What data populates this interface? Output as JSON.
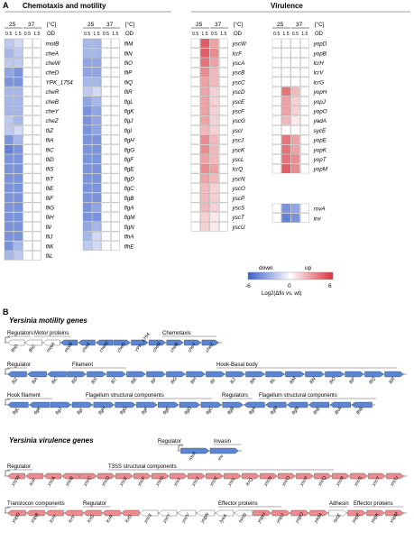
{
  "panel_a": {
    "label": "A",
    "motility_title": "Chemotaxis and motility",
    "virulence_title": "Virulence",
    "temps": [
      "25",
      "37"
    ],
    "temp_unit": "[°C]",
    "od_values": [
      "0.5",
      "1.5",
      "0.5",
      "1.5"
    ],
    "od_label": "OD",
    "col1_genes": [
      "motB",
      "cheA",
      "cheW",
      "cheD",
      "YPK_1754",
      "cheR",
      "cheB",
      "cheY",
      "cheZ",
      "fliZ",
      "fliA",
      "fliC",
      "fliD",
      "fliS",
      "fliT",
      "fliE",
      "fliF",
      "fliG",
      "fliH",
      "fliI",
      "fliJ",
      "fliK",
      "fliL"
    ],
    "col2_genes": [
      "fliM",
      "fliN",
      "fliO",
      "fliP",
      "fliQ",
      "fliR",
      "flgL",
      "flgK",
      "flgJ",
      "flgI",
      "flgH",
      "flgG",
      "flgF",
      "flgE",
      "flgD",
      "flgC",
      "flgB",
      "flgA",
      "flgM",
      "flgN",
      "flhA",
      "flhE"
    ],
    "col3_genes": [
      "yscW",
      "lcrF",
      "yscA",
      "yscB",
      "yscC",
      "yscD",
      "yscE",
      "yscF",
      "yscG",
      "yscI",
      "yscJ",
      "yscK",
      "yscL",
      "lcrQ",
      "yscN",
      "yscO",
      "yscP",
      "yscS",
      "yscT",
      "yscU"
    ],
    "col4_genes": [
      "yopD",
      "yopB",
      "lcrH",
      "lcrV",
      "lcrG",
      "yopH",
      "yopJ",
      "yopO",
      "yadA",
      "sycE",
      "yopE",
      "yopK",
      "yopT",
      "yopM"
    ],
    "col5_genes": [
      "rovA",
      "inv"
    ],
    "legend": {
      "down": "down",
      "up": "up",
      "min": "-6",
      "mid": "0",
      "max": "6",
      "label": "Log2(Δfis vs. wt)"
    },
    "colors": {
      "down": "#3a5fcd",
      "up": "#d9303a",
      "neutral": "#ffffff"
    }
  },
  "chart_data": {
    "type": "heatmap",
    "columns": [
      "25°C OD 0.5",
      "25°C OD 1.5",
      "37°C OD 0.5",
      "37°C OD 1.5"
    ],
    "range": [
      -6,
      6
    ],
    "rows": {
      "motB": [
        -1.5,
        -1,
        0,
        0
      ],
      "cheA": [
        -2,
        -1.5,
        0,
        0
      ],
      "cheW": [
        -1.5,
        -1.5,
        0,
        0
      ],
      "cheD": [
        -2.5,
        -3,
        0,
        0
      ],
      "YPK_1754": [
        -3,
        -3,
        0,
        0
      ],
      "cheR": [
        -2,
        -2,
        0,
        0
      ],
      "cheB": [
        -2,
        -2,
        0,
        0
      ],
      "cheY": [
        -2,
        -2,
        0,
        0
      ],
      "cheZ": [
        -1.5,
        -2,
        0,
        0
      ],
      "fliZ": [
        -1.5,
        -1,
        0,
        0
      ],
      "fliA": [
        -3,
        -2,
        0,
        0
      ],
      "fliC": [
        -3.5,
        -3,
        0,
        0
      ],
      "fliD": [
        -3,
        -3,
        0,
        0
      ],
      "fliS": [
        -3,
        -3,
        0,
        0
      ],
      "fliT": [
        -3,
        -3,
        0,
        0
      ],
      "fliE": [
        -3,
        -3,
        0,
        0
      ],
      "fliF": [
        -3,
        -3,
        0,
        0
      ],
      "fliG": [
        -3,
        -3,
        0,
        0
      ],
      "fliH": [
        -3,
        -3,
        0,
        0
      ],
      "fliI": [
        -3,
        -3,
        0,
        0
      ],
      "fliJ": [
        -3,
        -3,
        0,
        0
      ],
      "fliK": [
        -3,
        -2,
        0,
        0
      ],
      "fliL": [
        -2,
        -1.5,
        0,
        0
      ],
      "fliM": [
        -2,
        -2,
        0,
        0
      ],
      "fliN": [
        -2,
        -2,
        0,
        0
      ],
      "fliO": [
        -2.5,
        -2.5,
        0,
        0
      ],
      "fliP": [
        -2.5,
        -2.5,
        0,
        0
      ],
      "fliQ": [
        -2,
        -2,
        0,
        0
      ],
      "fliR": [
        -1.5,
        -1,
        0,
        0
      ],
      "flgL": [
        -2.5,
        -2,
        0,
        0
      ],
      "flgK": [
        -3,
        -2.5,
        0,
        0
      ],
      "flgJ": [
        -3,
        -2.5,
        0,
        0
      ],
      "flgI": [
        -3,
        -2.5,
        0,
        0
      ],
      "flgH": [
        -3,
        -3,
        0,
        0
      ],
      "flgG": [
        -3,
        -3,
        0,
        0
      ],
      "flgF": [
        -3,
        -3,
        0,
        0
      ],
      "flgE": [
        -3,
        -3,
        0,
        0
      ],
      "flgD": [
        -3,
        -3,
        0,
        0
      ],
      "flgC": [
        -3,
        -3,
        0,
        0
      ],
      "flgB": [
        -3,
        -3,
        0,
        0
      ],
      "flgA": [
        -3,
        -2.5,
        0,
        0
      ],
      "flgM": [
        -3,
        -3,
        0,
        0
      ],
      "flgN": [
        -2.5,
        -2,
        0,
        0
      ],
      "flhA": [
        -2,
        -1,
        0,
        0
      ],
      "flhE": [
        -1.5,
        -1,
        0,
        0
      ],
      "yscW": [
        0,
        3.5,
        2,
        0
      ],
      "lcrF": [
        0,
        3.5,
        2.5,
        0
      ],
      "yscA": [
        0,
        3,
        2,
        0
      ],
      "yscB": [
        0,
        2.5,
        1.5,
        0
      ],
      "yscC": [
        0,
        2,
        1.5,
        0
      ],
      "yscD": [
        0,
        2,
        1,
        0
      ],
      "yscE": [
        0,
        2,
        1,
        0
      ],
      "yscF": [
        0,
        2,
        1,
        0
      ],
      "yscG": [
        0,
        2,
        1,
        0
      ],
      "yscI": [
        0,
        1.5,
        1,
        0
      ],
      "yscJ": [
        0,
        2.5,
        1.5,
        0
      ],
      "yscK": [
        0,
        2.5,
        1.5,
        0
      ],
      "yscL": [
        0,
        2,
        1.5,
        0
      ],
      "lcrQ": [
        0,
        2.5,
        2,
        0
      ],
      "yscN": [
        0,
        2,
        1.5,
        0
      ],
      "yscO": [
        0,
        1.5,
        1,
        0
      ],
      "yscP": [
        0,
        1.5,
        1,
        0
      ],
      "yscS": [
        0,
        1.5,
        1,
        0
      ],
      "yscT": [
        0,
        1,
        0.5,
        0
      ],
      "yscU": [
        0,
        1,
        0.5,
        0
      ],
      "yopD": [
        0,
        0,
        0,
        0
      ],
      "yopB": [
        0,
        0,
        0,
        0
      ],
      "lcrH": [
        0,
        0,
        0,
        0
      ],
      "lcrV": [
        0,
        0,
        0,
        0
      ],
      "lcrG": [
        0,
        0,
        0,
        0
      ],
      "yopH": [
        0,
        3,
        1.5,
        0
      ],
      "yopJ": [
        0,
        2,
        1,
        0
      ],
      "yopO": [
        0,
        2,
        1,
        0
      ],
      "yadA": [
        0,
        1.5,
        0.5,
        0
      ],
      "sycE": [
        0,
        0,
        0,
        0
      ],
      "yopE": [
        0,
        3,
        2,
        0
      ],
      "yopK": [
        0,
        3,
        2,
        0
      ],
      "yopT": [
        0,
        3,
        2.5,
        0
      ],
      "yopM": [
        0,
        3.5,
        2.5,
        0
      ],
      "rovA": [
        0,
        -3,
        -2.5,
        0
      ],
      "inv": [
        0,
        -3.5,
        -3,
        0
      ]
    }
  },
  "panel_b": {
    "label": "B",
    "motility_title": "Yersinia motility genes",
    "virulence_title": "Yersinia virulence genes",
    "operons": [
      {
        "title_left": "Regulators",
        "title_right": "Motor proteins",
        "title_center": "Chemotaxis",
        "genes": [
          "flhD",
          "flhC",
          "motA",
          "motB",
          "cheA",
          "cheW",
          "cheD",
          "YPK_1754",
          "cheR",
          "cheB",
          "cheY",
          "cheZ"
        ]
      },
      {
        "title_left": "Regulator",
        "title_mid": "Filament",
        "title_right": "Hook-Basal body",
        "genes": [
          "fliZ",
          "fliA",
          "fliC",
          "fliD",
          "fliS",
          "fliT",
          "fliE",
          "fliF",
          "fliG",
          "fliH",
          "fliI",
          "fliJ",
          "fliK",
          "fliL",
          "fliM",
          "fliN",
          "fliO",
          "fliP",
          "fliQ",
          "fliR"
        ]
      },
      {
        "title_left": "Hook filament",
        "title_mid": "Flagellum structural components",
        "title_reg": "Regulators",
        "title_right": "Flagellum structural components",
        "genes": [
          "flgL",
          "flgK",
          "flgJ",
          "flgI",
          "flgH",
          "flgG",
          "flgF",
          "flgE",
          "flgD",
          "flgC",
          "flgB",
          "flgA",
          "flgM",
          "flgN",
          "flhE",
          "flhA",
          "flhB"
        ]
      },
      {
        "title_left": "Regulator",
        "title_right": "Invasin",
        "genes": [
          "rovA",
          "inv"
        ]
      },
      {
        "title_left": "Regulator",
        "title_right": "T3SS structural components",
        "genes": [
          "yscW",
          "lcrF",
          "yscA",
          "yscB",
          "yscC",
          "yscD",
          "yscE",
          "yscF",
          "yscG",
          "yscI",
          "yscJ",
          "yscK",
          "yscL",
          "lcrQ",
          "yscN",
          "yscO",
          "yscP",
          "yscQ",
          "yscR",
          "yscS",
          "yscT",
          "yscU"
        ]
      },
      {
        "title_left": "Translocon components",
        "title_reg": "Regulator",
        "title_mid": "Effector proteins",
        "title_adh": "Adhesin",
        "title_right": "Effector proteins",
        "genes": [
          "yopD",
          "yopB",
          "lcrH",
          "lcrV",
          "lcrG",
          "lcrR",
          "lcrD",
          "yscX",
          "yscY",
          "yscV",
          "yopN",
          "tyeA",
          "sycN",
          "yopH",
          "yopJ",
          "yopO",
          "yadA",
          "sycE",
          "yopE",
          "yopK",
          "yopM"
        ]
      }
    ]
  }
}
